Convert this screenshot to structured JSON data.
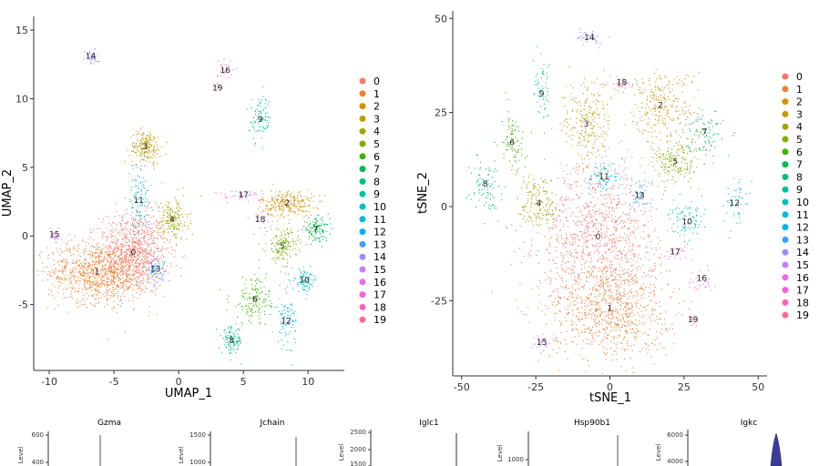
{
  "colors": [
    "#F8766D",
    "#EA8331",
    "#D89000",
    "#C09B00",
    "#A3A500",
    "#7CAE00",
    "#39B600",
    "#00BB4E",
    "#00BF7D",
    "#00C1A3",
    "#00BFC4",
    "#00BAE0",
    "#00B0F6",
    "#35A2FF",
    "#9590FF",
    "#C77CFF",
    "#E76BF3",
    "#FA62DB",
    "#FF62BC",
    "#FF6C91"
  ],
  "chart_data": [
    {
      "type": "scatter",
      "xlabel": "UMAP_1",
      "ylabel": "UMAP_2",
      "xlim": [
        -11.2,
        12.8
      ],
      "ylim": [
        -9.8,
        16.0
      ],
      "xticks": [
        "-10",
        "-5",
        "0",
        "5",
        "10"
      ],
      "xtick_values": [
        -10,
        -5,
        0,
        5,
        10
      ],
      "yticks": [
        "-5",
        "0",
        "5",
        "10",
        "15"
      ],
      "ytick_values": [
        -5,
        0,
        5,
        10,
        15
      ],
      "legend_labels": [
        "0",
        "1",
        "2",
        "3",
        "4",
        "5",
        "6",
        "7",
        "8",
        "9",
        "10",
        "11",
        "12",
        "13",
        "14",
        "15",
        "16",
        "17",
        "18",
        "19"
      ],
      "clusters": [
        {
          "id": "0",
          "x": -3.5,
          "y": -1.2,
          "sx": 1.3,
          "sy": 1.5,
          "n": 900
        },
        {
          "id": "1",
          "x": -6.3,
          "y": -2.6,
          "sx": 1.9,
          "sy": 1.1,
          "n": 900
        },
        {
          "id": "2",
          "x": 8.4,
          "y": 2.4,
          "sx": 1.0,
          "sy": 0.5,
          "n": 260
        },
        {
          "id": "3",
          "x": -2.6,
          "y": 6.5,
          "sx": 0.6,
          "sy": 0.6,
          "n": 200
        },
        {
          "id": "4",
          "x": -0.5,
          "y": 1.2,
          "sx": 0.6,
          "sy": 0.8,
          "n": 180
        },
        {
          "id": "5",
          "x": 8.0,
          "y": -0.7,
          "sx": 0.6,
          "sy": 0.6,
          "n": 160
        },
        {
          "id": "6",
          "x": 5.9,
          "y": -4.6,
          "sx": 1.0,
          "sy": 0.9,
          "n": 150
        },
        {
          "id": "7",
          "x": 10.6,
          "y": 0.5,
          "sx": 0.5,
          "sy": 0.4,
          "n": 120
        },
        {
          "id": "8",
          "x": 4.1,
          "y": -7.6,
          "sx": 0.4,
          "sy": 0.5,
          "n": 110
        },
        {
          "id": "9",
          "x": 6.3,
          "y": 8.5,
          "sx": 0.4,
          "sy": 0.8,
          "n": 90
        },
        {
          "id": "10",
          "x": 9.7,
          "y": -3.2,
          "sx": 0.5,
          "sy": 0.4,
          "n": 90
        },
        {
          "id": "11",
          "x": -3.1,
          "y": 2.6,
          "sx": 0.4,
          "sy": 1.3,
          "n": 110
        },
        {
          "id": "12",
          "x": 8.3,
          "y": -6.2,
          "sx": 0.4,
          "sy": 0.9,
          "n": 80
        },
        {
          "id": "13",
          "x": -1.8,
          "y": -2.4,
          "sx": 0.4,
          "sy": 0.4,
          "n": 70
        },
        {
          "id": "14",
          "x": -6.8,
          "y": 13.1,
          "sx": 0.3,
          "sy": 0.3,
          "n": 40
        },
        {
          "id": "15",
          "x": -9.6,
          "y": 0.1,
          "sx": 0.2,
          "sy": 0.3,
          "n": 30
        },
        {
          "id": "16",
          "x": 3.6,
          "y": 12.1,
          "sx": 0.3,
          "sy": 0.5,
          "n": 25
        },
        {
          "id": "17",
          "x": 5.0,
          "y": 3.0,
          "sx": 1.0,
          "sy": 0.2,
          "n": 40
        },
        {
          "id": "18",
          "x": 6.3,
          "y": 1.2,
          "sx": 0.4,
          "sy": 0.6,
          "n": 25
        },
        {
          "id": "19",
          "x": 3.0,
          "y": 10.8,
          "sx": 0.2,
          "sy": 0.2,
          "n": 12
        }
      ]
    },
    {
      "type": "scatter",
      "xlabel": "tSNE_1",
      "ylabel": "tSNE_2",
      "xlim": [
        -53,
        53
      ],
      "ylim": [
        -45,
        52
      ],
      "xticks": [
        "-50",
        "-25",
        "0",
        "25",
        "50"
      ],
      "xtick_values": [
        -50,
        -25,
        0,
        25,
        50
      ],
      "yticks": [
        "-25",
        "0",
        "25",
        "50"
      ],
      "ytick_values": [
        -25,
        0,
        25,
        50
      ],
      "legend_labels": [
        "0",
        "1",
        "2",
        "3",
        "4",
        "5",
        "6",
        "7",
        "8",
        "9",
        "10",
        "11",
        "12",
        "13",
        "14",
        "15",
        "16",
        "17",
        "18",
        "19"
      ],
      "clusters": [
        {
          "id": "0",
          "x": -4,
          "y": -8,
          "sx": 10,
          "sy": 10,
          "n": 1000
        },
        {
          "id": "1",
          "x": 0,
          "y": -27,
          "sx": 10,
          "sy": 7,
          "n": 800
        },
        {
          "id": "2",
          "x": 17,
          "y": 27,
          "sx": 6,
          "sy": 5,
          "n": 260
        },
        {
          "id": "3",
          "x": -8,
          "y": 22,
          "sx": 4,
          "sy": 6,
          "n": 240
        },
        {
          "id": "4",
          "x": -24,
          "y": 1,
          "sx": 3.5,
          "sy": 4,
          "n": 160
        },
        {
          "id": "5",
          "x": 22,
          "y": 12,
          "sx": 4,
          "sy": 3,
          "n": 180
        },
        {
          "id": "6",
          "x": -33,
          "y": 17,
          "sx": 2,
          "sy": 4,
          "n": 90
        },
        {
          "id": "7",
          "x": 32,
          "y": 20,
          "sx": 3,
          "sy": 3,
          "n": 90
        },
        {
          "id": "8",
          "x": -42,
          "y": 6,
          "sx": 2.5,
          "sy": 4,
          "n": 90
        },
        {
          "id": "9",
          "x": -23,
          "y": 30,
          "sx": 1.5,
          "sy": 4,
          "n": 60
        },
        {
          "id": "10",
          "x": 26,
          "y": -4,
          "sx": 3,
          "sy": 2.5,
          "n": 90
        },
        {
          "id": "11",
          "x": -2,
          "y": 8,
          "sx": 3,
          "sy": 2.5,
          "n": 80
        },
        {
          "id": "12",
          "x": 42,
          "y": 1,
          "sx": 2,
          "sy": 3,
          "n": 50
        },
        {
          "id": "13",
          "x": 10,
          "y": 3,
          "sx": 2,
          "sy": 2,
          "n": 50
        },
        {
          "id": "14",
          "x": -7,
          "y": 45,
          "sx": 2,
          "sy": 1.2,
          "n": 40
        },
        {
          "id": "15",
          "x": -23,
          "y": -36,
          "sx": 1.5,
          "sy": 1.2,
          "n": 30
        },
        {
          "id": "16",
          "x": 31,
          "y": -19,
          "sx": 2.5,
          "sy": 1.5,
          "n": 30
        },
        {
          "id": "17",
          "x": 22,
          "y": -12,
          "sx": 2,
          "sy": 1.5,
          "n": 25
        },
        {
          "id": "18",
          "x": 4,
          "y": 33,
          "sx": 1.5,
          "sy": 1,
          "n": 25
        },
        {
          "id": "19",
          "x": 28,
          "y": -30,
          "sx": 1,
          "sy": 0.8,
          "n": 12
        }
      ]
    },
    {
      "type": "violin",
      "title": "Gzma",
      "ylabel": "Level",
      "yticks": [
        "600",
        "400"
      ]
    },
    {
      "type": "violin",
      "title": "Jchain",
      "ylabel": "Level",
      "yticks": [
        "1500",
        "1000"
      ]
    },
    {
      "type": "violin",
      "title": "",
      "ylabel": "Level",
      "yticks": [
        "2500",
        "2000",
        "1500"
      ]
    },
    {
      "type": "violin",
      "title": "Iglc1",
      "ylabel": "",
      "yticks": []
    },
    {
      "type": "violin",
      "title": "Hsp90b1",
      "ylabel": "Level",
      "yticks": [
        "1000"
      ]
    },
    {
      "type": "violin",
      "title": "Igkc",
      "ylabel": "Level",
      "yticks": [
        "6000",
        "4000"
      ]
    }
  ]
}
